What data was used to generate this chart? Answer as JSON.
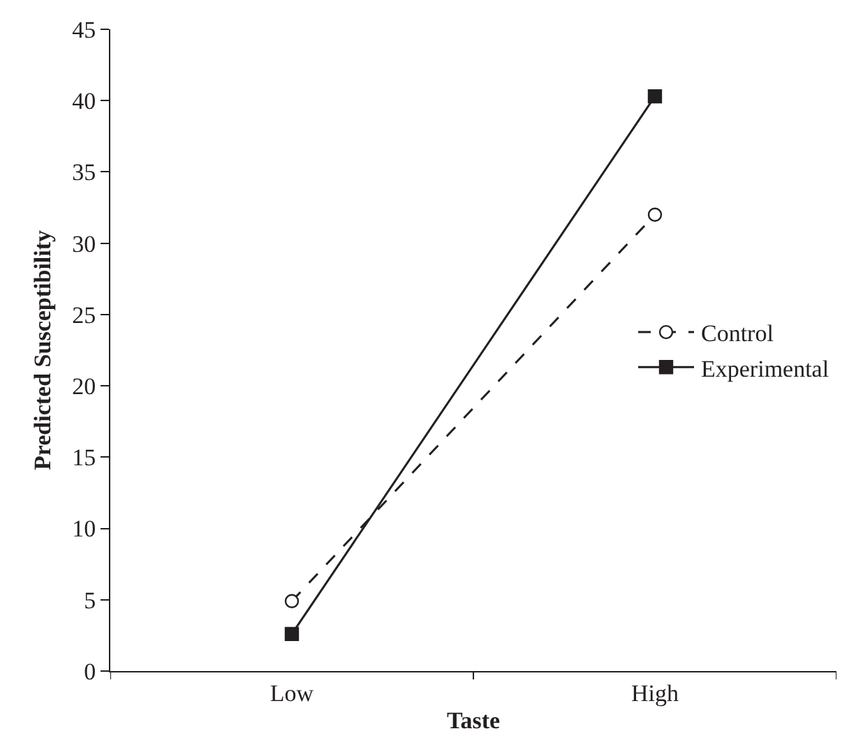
{
  "chart_data": {
    "type": "line",
    "xlabel": "Taste",
    "ylabel": "Predicted Susceptibility",
    "categories": [
      "Low",
      "High"
    ],
    "series": [
      {
        "name": "Control",
        "color": "#231f20",
        "values": [
          4.9,
          32.0
        ],
        "marker": "circle",
        "line_style": "dashed"
      },
      {
        "name": "Experimental",
        "color": "#231f20",
        "values": [
          2.6,
          40.3
        ],
        "marker": "square",
        "line_style": "solid"
      }
    ],
    "ylim": [
      0,
      45
    ],
    "yticks": [
      0,
      5,
      10,
      15,
      20,
      25,
      30,
      35,
      40,
      45
    ],
    "grid": false,
    "legend": "right"
  }
}
